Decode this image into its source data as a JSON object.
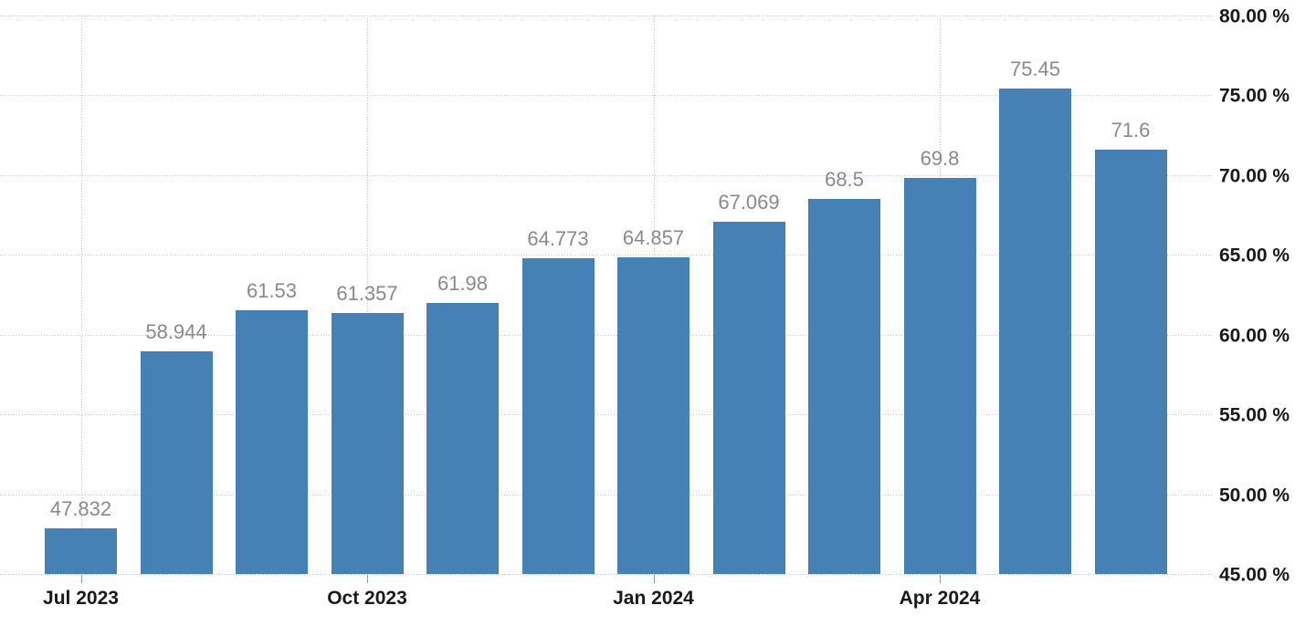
{
  "chart_data": {
    "type": "bar",
    "title": "",
    "xlabel": "",
    "ylabel": "",
    "ylim": [
      45,
      80
    ],
    "grid": true,
    "legend": null,
    "y_axis_side": "right",
    "bars": [
      {
        "value": 47.832,
        "label": "47.832"
      },
      {
        "value": 58.944,
        "label": "58.944"
      },
      {
        "value": 61.53,
        "label": "61.53"
      },
      {
        "value": 61.357,
        "label": "61.357"
      },
      {
        "value": 61.98,
        "label": "61.98"
      },
      {
        "value": 64.773,
        "label": "64.773"
      },
      {
        "value": 64.857,
        "label": "64.857"
      },
      {
        "value": 67.069,
        "label": "67.069"
      },
      {
        "value": 68.5,
        "label": "68.5"
      },
      {
        "value": 69.8,
        "label": "69.8"
      },
      {
        "value": 75.45,
        "label": "75.45"
      },
      {
        "value": 71.6,
        "label": "71.6"
      }
    ],
    "x_ticks": [
      {
        "bar_index": 0,
        "label": "Jul 2023"
      },
      {
        "bar_index": 3,
        "label": "Oct 2023"
      },
      {
        "bar_index": 6,
        "label": "Jan 2024"
      },
      {
        "bar_index": 9,
        "label": "Apr 2024"
      }
    ],
    "y_ticks": [
      {
        "value": 80,
        "label": "80.00 %"
      },
      {
        "value": 75,
        "label": "75.00 %"
      },
      {
        "value": 70,
        "label": "70.00 %"
      },
      {
        "value": 65,
        "label": "65.00 %"
      },
      {
        "value": 60,
        "label": "60.00 %"
      },
      {
        "value": 55,
        "label": "55.00 %"
      },
      {
        "value": 50,
        "label": "50.00 %"
      },
      {
        "value": 45,
        "label": "45.00 %"
      }
    ],
    "colors": {
      "bar": "#4581b4",
      "value_label": "#8a8a8a",
      "axis_label": "#1a1a1a",
      "gridline": "#c6c6c6",
      "tick": "#999999",
      "background": "#ffffff"
    }
  }
}
